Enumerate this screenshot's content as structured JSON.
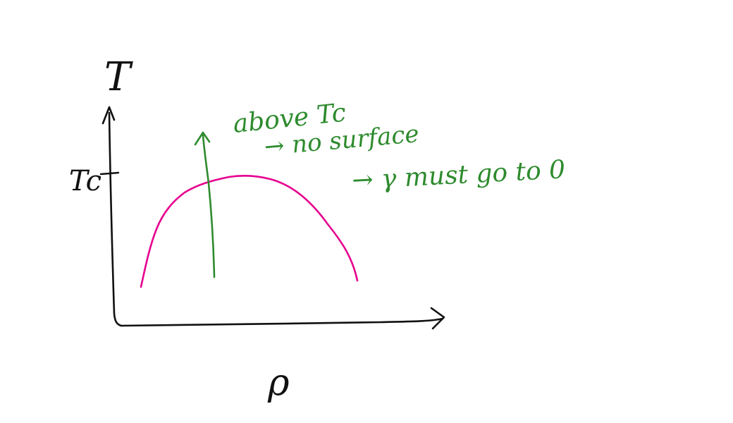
{
  "colors": {
    "axes": "#111111",
    "coexistence_curve": "#e6008f",
    "annotation": "#2e8b2e",
    "background": "#ffffff"
  },
  "axes": {
    "y_label": "T",
    "x_label": "ρ",
    "tick_label": "Tc"
  },
  "annotations": {
    "line1": "above Tc",
    "line2": "→ no surface",
    "line3": "→ γ must go to 0"
  }
}
